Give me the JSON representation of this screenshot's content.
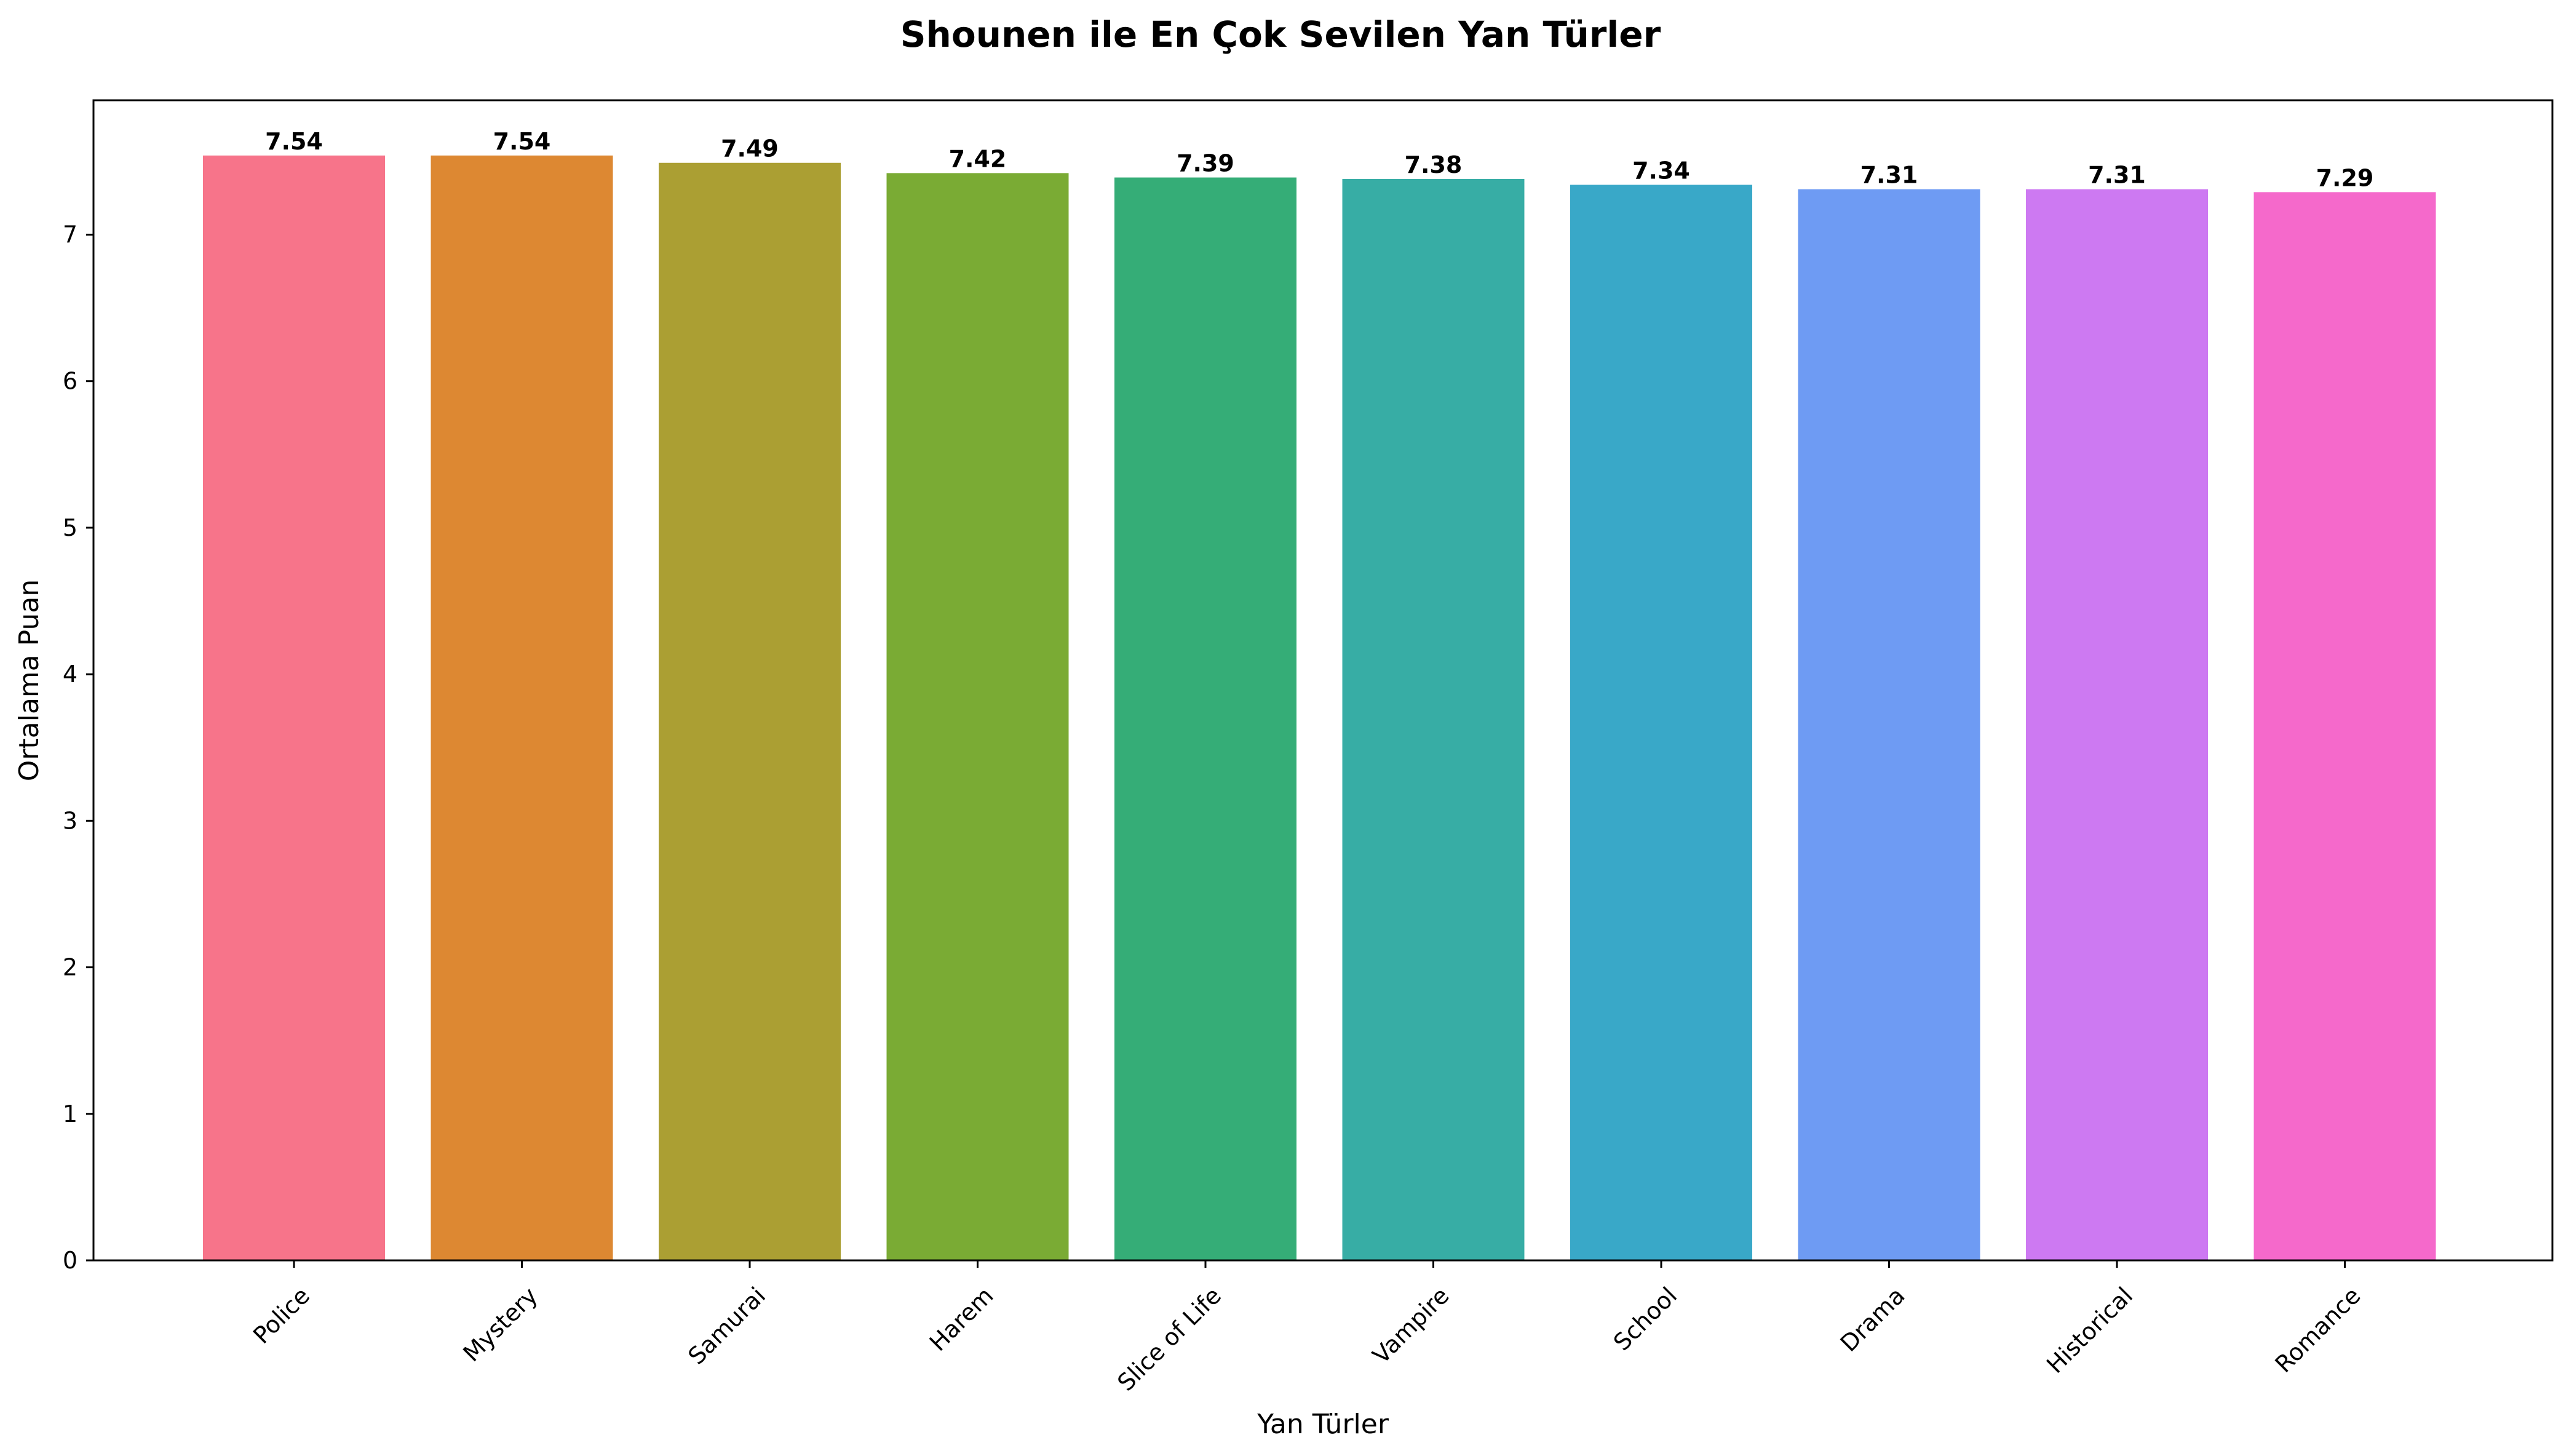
{
  "chart_data": {
    "type": "bar",
    "title": "Shounen ile En Çok Sevilen Yan Türler",
    "xlabel": "Yan Türler",
    "ylabel": "Ortalama Puan",
    "categories": [
      "Police",
      "Mystery",
      "Samurai",
      "Harem",
      "Slice of Life",
      "Vampire",
      "School",
      "Drama",
      "Historical",
      "Romance"
    ],
    "values": [
      7.54,
      7.54,
      7.49,
      7.42,
      7.39,
      7.38,
      7.34,
      7.31,
      7.31,
      7.29
    ],
    "value_labels": [
      "7.54",
      "7.54",
      "7.49",
      "7.42",
      "7.39",
      "7.38",
      "7.34",
      "7.31",
      "7.31",
      "7.29"
    ],
    "colors": [
      "#f7748a",
      "#dd8832",
      "#ab9f33",
      "#7aab34",
      "#35ad77",
      "#37ada5",
      "#39a8c8",
      "#6e9bf3",
      "#cd79f2",
      "#f569cb"
    ],
    "ylim": [
      0,
      7.917
    ],
    "yticks": [
      0,
      1,
      2,
      3,
      4,
      5,
      6,
      7
    ],
    "grid": false,
    "legend": "none"
  }
}
